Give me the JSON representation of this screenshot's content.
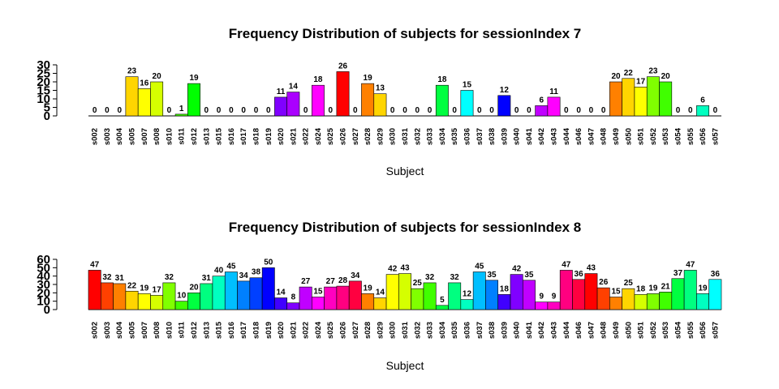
{
  "chart_data": [
    {
      "type": "bar",
      "title": "Frequency Distribution of subjects for sessionIndex 7",
      "xlabel": "Subject",
      "ylabel": "",
      "ylim": [
        0,
        30
      ],
      "yticks": [
        0,
        5,
        10,
        15,
        20,
        25,
        30
      ],
      "grid": false,
      "categories": [
        "s002",
        "s003",
        "s004",
        "s005",
        "s007",
        "s008",
        "s010",
        "s011",
        "s012",
        "s013",
        "s015",
        "s016",
        "s017",
        "s018",
        "s019",
        "s020",
        "s021",
        "s022",
        "s024",
        "s025",
        "s026",
        "s027",
        "s028",
        "s029",
        "s030",
        "s031",
        "s032",
        "s033",
        "s034",
        "s035",
        "s036",
        "s037",
        "s038",
        "s039",
        "s040",
        "s041",
        "s042",
        "s043",
        "s044",
        "s046",
        "s047",
        "s048",
        "s049",
        "s050",
        "s051",
        "s052",
        "s053",
        "s054",
        "s055",
        "s056",
        "s057"
      ],
      "values": [
        0,
        0,
        0,
        23,
        16,
        20,
        0,
        1,
        19,
        0,
        0,
        0,
        0,
        0,
        0,
        11,
        14,
        0,
        18,
        0,
        26,
        0,
        19,
        13,
        0,
        0,
        0,
        0,
        18,
        0,
        15,
        0,
        0,
        12,
        0,
        0,
        6,
        11,
        0,
        0,
        0,
        0,
        20,
        22,
        17,
        23,
        20,
        0,
        0,
        6,
        0
      ],
      "colors": [
        "#FF0000",
        "#FF4000",
        "#FF8000",
        "#FFD500",
        "#FFFF00",
        "#D5FF00",
        "#80FF00",
        "#40FF00",
        "#00FF00",
        "#00FF2A",
        "#00FF55",
        "#00FF80",
        "#00FFAA",
        "#00FFD5",
        "#00FFFF",
        "#8000FF",
        "#AA00FF",
        "#D500FF",
        "#FF00FF",
        "#FF00D5",
        "#FF0000",
        "#FF4000",
        "#FF8000",
        "#FFD500",
        "#FFFF00",
        "#D5FF00",
        "#80FF00",
        "#40FF00",
        "#00FF40",
        "#00FF80",
        "#00FFFF",
        "#00BFFF",
        "#0080FF",
        "#0000FF",
        "#4000FF",
        "#8000FF",
        "#C000FF",
        "#FF00FF",
        "#FF00C0",
        "#FF0080",
        "#FF0040",
        "#FF0020",
        "#FF8000",
        "#FFD500",
        "#FFFF00",
        "#80FF00",
        "#40FF00",
        "#00FF40",
        "#00FF80",
        "#00FFC0",
        "#00FFFF"
      ]
    },
    {
      "type": "bar",
      "title": "Frequency Distribution of subjects for sessionIndex 8",
      "xlabel": "Subject",
      "ylabel": "",
      "ylim": [
        0,
        60
      ],
      "yticks": [
        0,
        10,
        20,
        30,
        40,
        50,
        60
      ],
      "grid": false,
      "categories": [
        "s002",
        "s003",
        "s004",
        "s005",
        "s007",
        "s008",
        "s010",
        "s011",
        "s012",
        "s013",
        "s015",
        "s016",
        "s017",
        "s018",
        "s019",
        "s020",
        "s021",
        "s022",
        "s024",
        "s025",
        "s026",
        "s027",
        "s028",
        "s029",
        "s030",
        "s031",
        "s032",
        "s033",
        "s034",
        "s035",
        "s036",
        "s037",
        "s038",
        "s039",
        "s040",
        "s041",
        "s042",
        "s043",
        "s044",
        "s046",
        "s047",
        "s048",
        "s049",
        "s050",
        "s051",
        "s052",
        "s053",
        "s054",
        "s055",
        "s056",
        "s057"
      ],
      "values": [
        47,
        32,
        31,
        22,
        19,
        17,
        32,
        10,
        20,
        31,
        40,
        45,
        34,
        38,
        50,
        14,
        8,
        27,
        15,
        27,
        28,
        34,
        19,
        14,
        42,
        43,
        25,
        32,
        5,
        32,
        12,
        45,
        35,
        18,
        42,
        35,
        9,
        9,
        47,
        36,
        43,
        26,
        15,
        25,
        18,
        19,
        21,
        37,
        47,
        19,
        36
      ],
      "colors": [
        "#FF0000",
        "#FF4000",
        "#FF8000",
        "#FFD500",
        "#FFFF00",
        "#D5FF00",
        "#80FF00",
        "#40FF00",
        "#00FF40",
        "#00FF80",
        "#00FFC0",
        "#00BFFF",
        "#0080FF",
        "#0040FF",
        "#0000FF",
        "#4000FF",
        "#8000FF",
        "#C000FF",
        "#FF00FF",
        "#FF00C0",
        "#FF0080",
        "#FF0040",
        "#FF8000",
        "#FFD500",
        "#FFFF00",
        "#D5FF00",
        "#80FF00",
        "#40FF00",
        "#00FF40",
        "#00FF80",
        "#00FFC0",
        "#00BFFF",
        "#0080FF",
        "#4000FF",
        "#8000FF",
        "#C000FF",
        "#FF00FF",
        "#FF00C0",
        "#FF0080",
        "#FF0040",
        "#FF0000",
        "#FF4000",
        "#FF8000",
        "#FFD500",
        "#D5FF00",
        "#80FF00",
        "#40FF00",
        "#00FF40",
        "#00FF80",
        "#00FFC0",
        "#00FFFF"
      ]
    }
  ]
}
